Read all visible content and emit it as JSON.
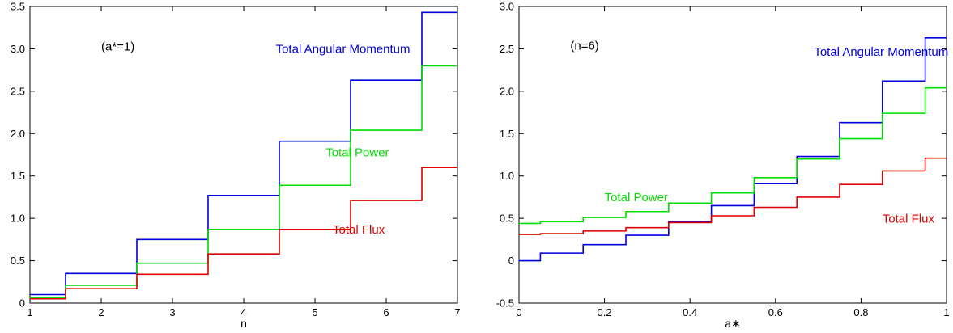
{
  "chart_data": [
    {
      "type": "line",
      "step": true,
      "annotation": "(a*=1)",
      "xlabel": "n",
      "ylabel": "",
      "xlim": [
        1,
        7
      ],
      "ylim": [
        0,
        3.5
      ],
      "xticks": [
        "1",
        "2",
        "3",
        "4",
        "5",
        "6",
        "7"
      ],
      "yticks": [
        "0",
        "0.5",
        "1.0",
        "1.5",
        "2.0",
        "2.5",
        "3.0",
        "3.5"
      ],
      "series": [
        {
          "name": "Total Angular Momentum",
          "color": "#0000dd",
          "steps": [
            {
              "x0": 1.0,
              "x1": 1.5,
              "y": 0.1
            },
            {
              "x0": 1.5,
              "x1": 2.5,
              "y": 0.35
            },
            {
              "x0": 2.5,
              "x1": 3.5,
              "y": 0.75
            },
            {
              "x0": 3.5,
              "x1": 4.5,
              "y": 1.27
            },
            {
              "x0": 4.5,
              "x1": 5.5,
              "y": 1.91
            },
            {
              "x0": 5.5,
              "x1": 6.5,
              "y": 2.63
            },
            {
              "x0": 6.5,
              "x1": 7.0,
              "y": 3.43
            }
          ]
        },
        {
          "name": "Total Power",
          "color": "#00dd00",
          "steps": [
            {
              "x0": 1.0,
              "x1": 1.5,
              "y": 0.06
            },
            {
              "x0": 1.5,
              "x1": 2.5,
              "y": 0.21
            },
            {
              "x0": 2.5,
              "x1": 3.5,
              "y": 0.47
            },
            {
              "x0": 3.5,
              "x1": 4.5,
              "y": 0.87
            },
            {
              "x0": 4.5,
              "x1": 5.5,
              "y": 1.39
            },
            {
              "x0": 5.5,
              "x1": 6.5,
              "y": 2.04
            },
            {
              "x0": 6.5,
              "x1": 7.0,
              "y": 2.8
            }
          ]
        },
        {
          "name": "Total Flux",
          "color": "#dd0000",
          "steps": [
            {
              "x0": 1.0,
              "x1": 1.5,
              "y": 0.05
            },
            {
              "x0": 1.5,
              "x1": 2.5,
              "y": 0.17
            },
            {
              "x0": 2.5,
              "x1": 3.5,
              "y": 0.34
            },
            {
              "x0": 3.5,
              "x1": 4.5,
              "y": 0.58
            },
            {
              "x0": 4.5,
              "x1": 5.5,
              "y": 0.87
            },
            {
              "x0": 5.5,
              "x1": 6.5,
              "y": 1.21
            },
            {
              "x0": 6.5,
              "x1": 7.0,
              "y": 1.6
            }
          ]
        }
      ],
      "labels": [
        {
          "series": "Total Angular Momentum",
          "x": 4.45,
          "y": 2.95
        },
        {
          "series": "Total Power",
          "x": 5.15,
          "y": 1.73
        },
        {
          "series": "Total Flux",
          "x": 5.25,
          "y": 0.82
        }
      ],
      "annotation_pos": {
        "x": 2.0,
        "y": 2.98
      }
    },
    {
      "type": "line",
      "step": true,
      "annotation": "(n=6)",
      "xlabel": "a∗",
      "ylabel": "",
      "xlim": [
        0,
        1
      ],
      "ylim": [
        -0.5,
        3.0
      ],
      "xticks": [
        "0",
        "0.2",
        "0.4",
        "0.6",
        "0.8",
        "1"
      ],
      "yticks": [
        "-0.5",
        "0",
        "0.5",
        "1.0",
        "1.5",
        "2.0",
        "2.5",
        "3.0"
      ],
      "series": [
        {
          "name": "Total Angular Momentum",
          "color": "#0000dd",
          "steps": [
            {
              "x0": 0.0,
              "x1": 0.05,
              "y": 0.0
            },
            {
              "x0": 0.05,
              "x1": 0.15,
              "y": 0.09
            },
            {
              "x0": 0.15,
              "x1": 0.25,
              "y": 0.19
            },
            {
              "x0": 0.25,
              "x1": 0.35,
              "y": 0.3
            },
            {
              "x0": 0.35,
              "x1": 0.45,
              "y": 0.46
            },
            {
              "x0": 0.45,
              "x1": 0.55,
              "y": 0.65
            },
            {
              "x0": 0.55,
              "x1": 0.65,
              "y": 0.91
            },
            {
              "x0": 0.65,
              "x1": 0.75,
              "y": 1.23
            },
            {
              "x0": 0.75,
              "x1": 0.85,
              "y": 1.63
            },
            {
              "x0": 0.85,
              "x1": 0.95,
              "y": 2.12
            },
            {
              "x0": 0.95,
              "x1": 1.0,
              "y": 2.63
            }
          ]
        },
        {
          "name": "Total Power",
          "color": "#00dd00",
          "steps": [
            {
              "x0": 0.0,
              "x1": 0.05,
              "y": 0.44
            },
            {
              "x0": 0.05,
              "x1": 0.15,
              "y": 0.46
            },
            {
              "x0": 0.15,
              "x1": 0.25,
              "y": 0.51
            },
            {
              "x0": 0.25,
              "x1": 0.35,
              "y": 0.58
            },
            {
              "x0": 0.35,
              "x1": 0.45,
              "y": 0.68
            },
            {
              "x0": 0.45,
              "x1": 0.55,
              "y": 0.8
            },
            {
              "x0": 0.55,
              "x1": 0.65,
              "y": 0.98
            },
            {
              "x0": 0.65,
              "x1": 0.75,
              "y": 1.2
            },
            {
              "x0": 0.75,
              "x1": 0.85,
              "y": 1.44
            },
            {
              "x0": 0.85,
              "x1": 0.95,
              "y": 1.74
            },
            {
              "x0": 0.95,
              "x1": 1.0,
              "y": 2.04
            }
          ]
        },
        {
          "name": "Total Flux",
          "color": "#dd0000",
          "steps": [
            {
              "x0": 0.0,
              "x1": 0.05,
              "y": 0.31
            },
            {
              "x0": 0.05,
              "x1": 0.15,
              "y": 0.32
            },
            {
              "x0": 0.15,
              "x1": 0.25,
              "y": 0.35
            },
            {
              "x0": 0.25,
              "x1": 0.35,
              "y": 0.39
            },
            {
              "x0": 0.35,
              "x1": 0.45,
              "y": 0.45
            },
            {
              "x0": 0.45,
              "x1": 0.55,
              "y": 0.53
            },
            {
              "x0": 0.55,
              "x1": 0.65,
              "y": 0.63
            },
            {
              "x0": 0.65,
              "x1": 0.75,
              "y": 0.75
            },
            {
              "x0": 0.75,
              "x1": 0.85,
              "y": 0.9
            },
            {
              "x0": 0.85,
              "x1": 0.95,
              "y": 1.06
            },
            {
              "x0": 0.95,
              "x1": 1.0,
              "y": 1.21
            }
          ]
        }
      ],
      "labels": [
        {
          "series": "Total Angular Momentum",
          "x": 0.69,
          "y": 2.42
        },
        {
          "series": "Total Power",
          "x": 0.2,
          "y": 0.7
        },
        {
          "series": "Total Flux",
          "x": 0.85,
          "y": 0.45
        }
      ],
      "annotation_pos": {
        "x": 0.12,
        "y": 2.49
      }
    }
  ]
}
